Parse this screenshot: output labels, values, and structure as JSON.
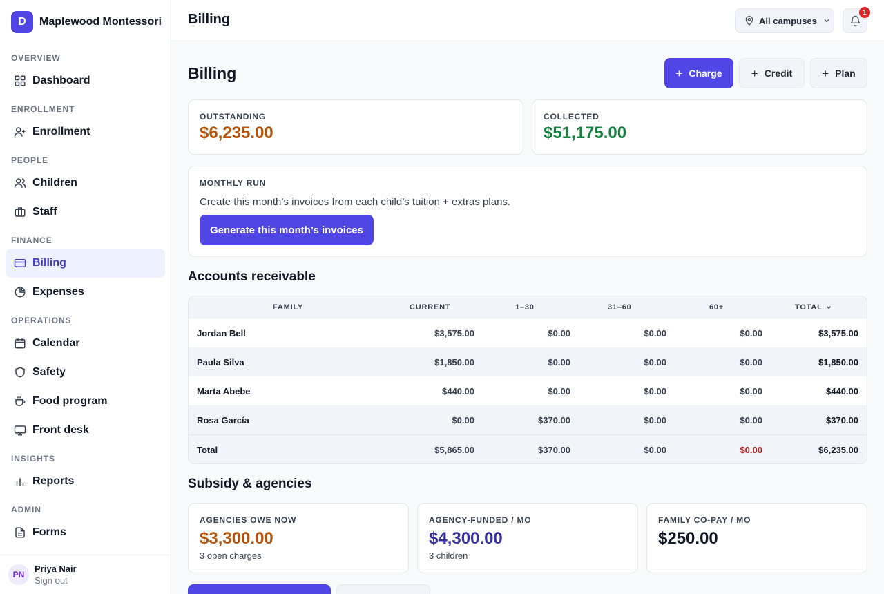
{
  "brand": {
    "initial": "D",
    "name": "Maplewood Montessori"
  },
  "nav": {
    "sections": [
      "OVERVIEW",
      "ENROLLMENT",
      "PEOPLE",
      "FINANCE",
      "OPERATIONS",
      "INSIGHTS",
      "ADMIN"
    ],
    "items": [
      {
        "label": "Dashboard",
        "icon": "grid-icon"
      },
      {
        "label": "Enrollment",
        "icon": "user-plus-icon"
      },
      {
        "label": "Children",
        "icon": "users-icon"
      },
      {
        "label": "Staff",
        "icon": "briefcase-icon"
      },
      {
        "label": "Billing",
        "icon": "credit-card-icon",
        "active": true
      },
      {
        "label": "Expenses",
        "icon": "pie-chart-icon"
      },
      {
        "label": "Calendar",
        "icon": "calendar-icon"
      },
      {
        "label": "Safety",
        "icon": "shield-icon"
      },
      {
        "label": "Food program",
        "icon": "coffee-icon"
      },
      {
        "label": "Front desk",
        "icon": "monitor-icon"
      },
      {
        "label": "Reports",
        "icon": "bar-chart-icon"
      },
      {
        "label": "Forms",
        "icon": "file-text-icon"
      }
    ]
  },
  "user": {
    "initials": "PN",
    "name": "Priya Nair",
    "sign_out": "Sign out"
  },
  "topbar": {
    "title": "Billing",
    "campus": "All campuses",
    "notifications": "1"
  },
  "page": {
    "title": "Billing",
    "actions": {
      "charge": "Charge",
      "credit": "Credit",
      "plan": "Plan",
      "plus": "+"
    }
  },
  "summary": {
    "outstanding": {
      "label": "OUTSTANDING",
      "value": "$6,235.00"
    },
    "collected": {
      "label": "COLLECTED",
      "value": "$51,175.00"
    }
  },
  "monthly_run": {
    "label": "MONTHLY RUN",
    "description": "Create this month’s invoices from each child’s tuition + extras plans.",
    "button": "Generate this month’s invoices"
  },
  "receivable": {
    "title": "Accounts receivable",
    "columns": [
      "FAMILY",
      "CURRENT",
      "1–30",
      "31–60",
      "60+",
      "TOTAL"
    ],
    "sorted_by": "TOTAL",
    "rows": [
      {
        "family": "Jordan Bell",
        "current": "$3,575.00",
        "d1_30": "$0.00",
        "d31_60": "$0.00",
        "d60": "$0.00",
        "total": "$3,575.00"
      },
      {
        "family": "Paula Silva",
        "current": "$1,850.00",
        "d1_30": "$0.00",
        "d31_60": "$0.00",
        "d60": "$0.00",
        "total": "$1,850.00"
      },
      {
        "family": "Marta Abebe",
        "current": "$440.00",
        "d1_30": "$0.00",
        "d31_60": "$0.00",
        "d60": "$0.00",
        "total": "$440.00"
      },
      {
        "family": "Rosa García",
        "current": "$0.00",
        "d1_30": "$370.00",
        "d31_60": "$0.00",
        "d60": "$0.00",
        "total": "$370.00"
      }
    ],
    "totals": {
      "family": "Total",
      "current": "$5,865.00",
      "d1_30": "$370.00",
      "d31_60": "$0.00",
      "d60": "$0.00",
      "total": "$6,235.00"
    }
  },
  "subsidy": {
    "title": "Subsidy & agencies",
    "cards": [
      {
        "label": "AGENCIES OWE NOW",
        "value": "$3,300.00",
        "sub": "3 open charges"
      },
      {
        "label": "AGENCY-FUNDED / MO",
        "value": "$4,300.00",
        "sub": "3 children"
      },
      {
        "label": "FAMILY CO-PAY / MO",
        "value": "$250.00",
        "sub": ""
      }
    ]
  },
  "colors": {
    "accent": "#4f46e5",
    "outstanding": "#b45309",
    "collected": "#15803d",
    "agency_funded": "#3730a3",
    "negative": "#b91c1c"
  }
}
